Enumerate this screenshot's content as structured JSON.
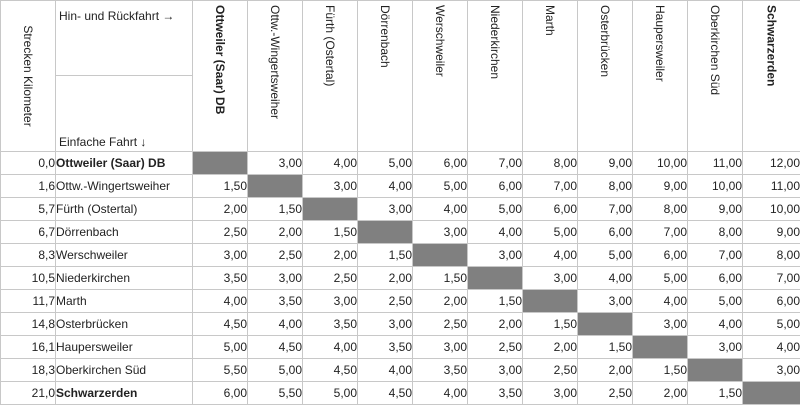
{
  "header": {
    "km_label": "Strecken Kilometer",
    "round_trip_label": "Hin- und Rückfahrt →",
    "single_trip_label": "Einfache Fahrt ↓"
  },
  "columns": [
    {
      "name": "Ottweiler (Saar) DB",
      "bold": true
    },
    {
      "name": "Ottw.-Wingertsweiher",
      "bold": false
    },
    {
      "name": "Fürth (Ostertal)",
      "bold": false
    },
    {
      "name": "Dörrenbach",
      "bold": false
    },
    {
      "name": "Werschweiler",
      "bold": false
    },
    {
      "name": "Niederkirchen",
      "bold": false
    },
    {
      "name": "Marth",
      "bold": false
    },
    {
      "name": "Osterbrücken",
      "bold": false
    },
    {
      "name": "Haupersweiler",
      "bold": false
    },
    {
      "name": "Oberkirchen Süd",
      "bold": false
    },
    {
      "name": "Schwarzerden",
      "bold": true
    }
  ],
  "rows": [
    {
      "km": "0,0",
      "name": "Ottweiler (Saar) DB",
      "bold": true,
      "fares": [
        "",
        "3,00",
        "4,00",
        "5,00",
        "6,00",
        "7,00",
        "8,00",
        "9,00",
        "10,00",
        "11,00",
        "12,00"
      ]
    },
    {
      "km": "1,6",
      "name": "Ottw.-Wingertsweiher",
      "bold": false,
      "fares": [
        "1,50",
        "",
        "3,00",
        "4,00",
        "5,00",
        "6,00",
        "7,00",
        "8,00",
        "9,00",
        "10,00",
        "11,00"
      ]
    },
    {
      "km": "5,7",
      "name": "Fürth (Ostertal)",
      "bold": false,
      "fares": [
        "2,00",
        "1,50",
        "",
        "3,00",
        "4,00",
        "5,00",
        "6,00",
        "7,00",
        "8,00",
        "9,00",
        "10,00"
      ]
    },
    {
      "km": "6,7",
      "name": "Dörrenbach",
      "bold": false,
      "fares": [
        "2,50",
        "2,00",
        "1,50",
        "",
        "3,00",
        "4,00",
        "5,00",
        "6,00",
        "7,00",
        "8,00",
        "9,00"
      ]
    },
    {
      "km": "8,3",
      "name": "Werschweiler",
      "bold": false,
      "fares": [
        "3,00",
        "2,50",
        "2,00",
        "1,50",
        "",
        "3,00",
        "4,00",
        "5,00",
        "6,00",
        "7,00",
        "8,00"
      ]
    },
    {
      "km": "10,5",
      "name": "Niederkirchen",
      "bold": false,
      "fares": [
        "3,50",
        "3,00",
        "2,50",
        "2,00",
        "1,50",
        "",
        "3,00",
        "4,00",
        "5,00",
        "6,00",
        "7,00"
      ]
    },
    {
      "km": "11,7",
      "name": "Marth",
      "bold": false,
      "fares": [
        "4,00",
        "3,50",
        "3,00",
        "2,50",
        "2,00",
        "1,50",
        "",
        "3,00",
        "4,00",
        "5,00",
        "6,00"
      ]
    },
    {
      "km": "14,8",
      "name": "Osterbrücken",
      "bold": false,
      "fares": [
        "4,50",
        "4,00",
        "3,50",
        "3,00",
        "2,50",
        "2,00",
        "1,50",
        "",
        "3,00",
        "4,00",
        "5,00"
      ]
    },
    {
      "km": "16,1",
      "name": "Haupersweiler",
      "bold": false,
      "fares": [
        "5,00",
        "4,50",
        "4,00",
        "3,50",
        "3,00",
        "2,50",
        "2,00",
        "1,50",
        "",
        "3,00",
        "4,00"
      ]
    },
    {
      "km": "18,3",
      "name": "Oberkirchen Süd",
      "bold": false,
      "fares": [
        "5,50",
        "5,00",
        "4,50",
        "4,00",
        "3,50",
        "3,00",
        "2,50",
        "2,00",
        "1,50",
        "",
        "3,00"
      ]
    },
    {
      "km": "21,0",
      "name": "Schwarzerden",
      "bold": true,
      "fares": [
        "6,00",
        "5,50",
        "5,00",
        "4,50",
        "4,00",
        "3,50",
        "3,00",
        "2,50",
        "2,00",
        "1,50",
        ""
      ]
    }
  ],
  "colors": {
    "diagonal": "#808080",
    "border": "#c8c8c8"
  }
}
